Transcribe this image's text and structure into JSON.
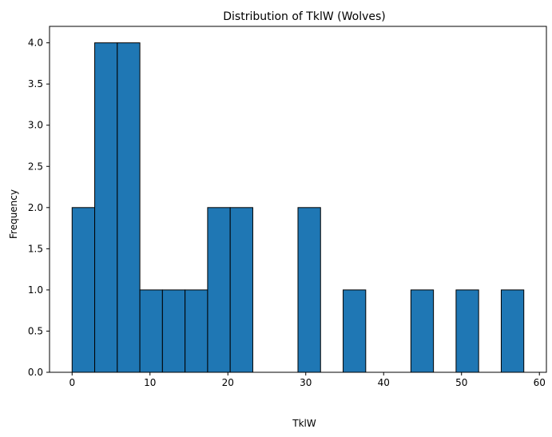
{
  "chart_data": {
    "type": "bar",
    "title": "Distribution of TklW (Wolves)",
    "xlabel": "TklW",
    "ylabel": "Frequency",
    "xlim": [
      -2.9,
      60.9
    ],
    "ylim": [
      0,
      4.2
    ],
    "bin_edges": [
      0,
      2.9,
      5.8,
      8.7,
      11.6,
      14.5,
      17.4,
      20.3,
      23.2,
      26.1,
      29.0,
      31.9,
      34.8,
      37.7,
      40.6,
      43.5,
      46.4,
      49.3,
      52.2,
      55.1,
      58.0
    ],
    "values": [
      2,
      4,
      4,
      1,
      1,
      1,
      2,
      2,
      0,
      0,
      2,
      0,
      1,
      0,
      0,
      1,
      0,
      1,
      0,
      1
    ],
    "x_ticks": [
      0,
      10,
      20,
      30,
      40,
      50,
      60
    ],
    "x_tick_labels": [
      "0",
      "10",
      "20",
      "30",
      "40",
      "50",
      "60"
    ],
    "y_ticks": [
      0,
      0.5,
      1.0,
      1.5,
      2.0,
      2.5,
      3.0,
      3.5,
      4.0
    ],
    "y_tick_labels": [
      "0.0",
      "0.5",
      "1.0",
      "1.5",
      "2.0",
      "2.5",
      "3.0",
      "3.5",
      "4.0"
    ],
    "bar_color": "#1f77b4",
    "bar_edge_color": "#000000",
    "grid": false,
    "legend": null
  }
}
